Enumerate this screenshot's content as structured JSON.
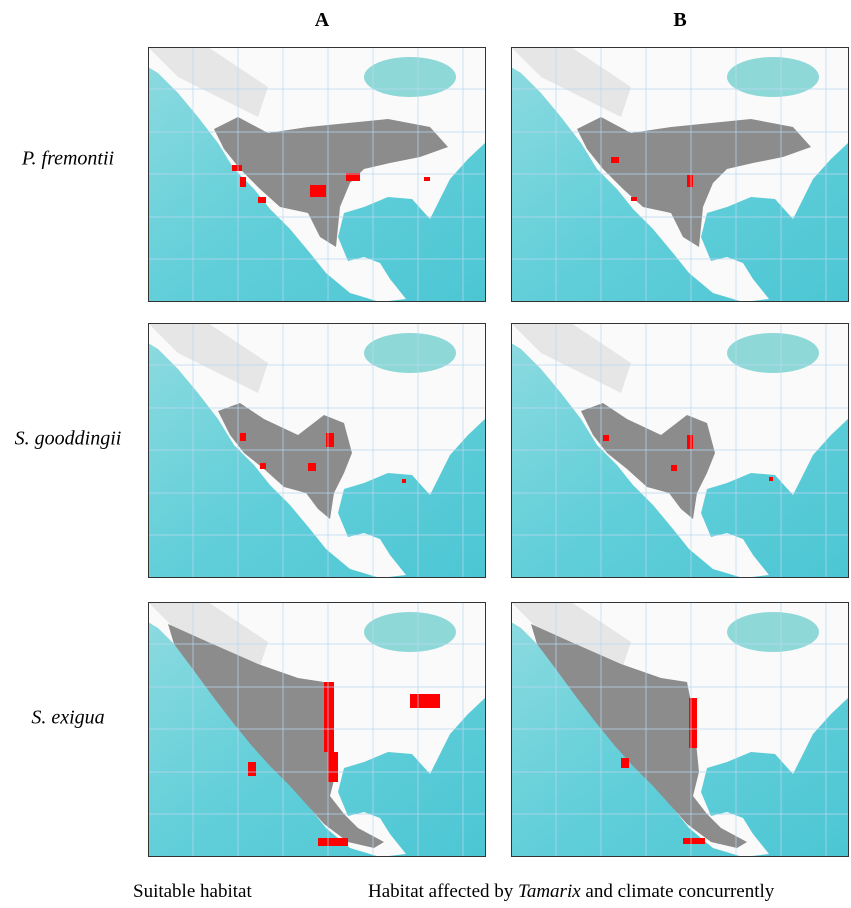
{
  "columns": [
    "A",
    "B"
  ],
  "rows": [
    "P. fremontii",
    "S. gooddingii",
    "S. exigua"
  ],
  "legend": {
    "items": [
      {
        "parts": [
          "Suitable habitat"
        ]
      },
      {
        "parts": [
          "Habitat affected by ",
          "Tamarix",
          " and climate concurrently"
        ]
      }
    ]
  }
}
